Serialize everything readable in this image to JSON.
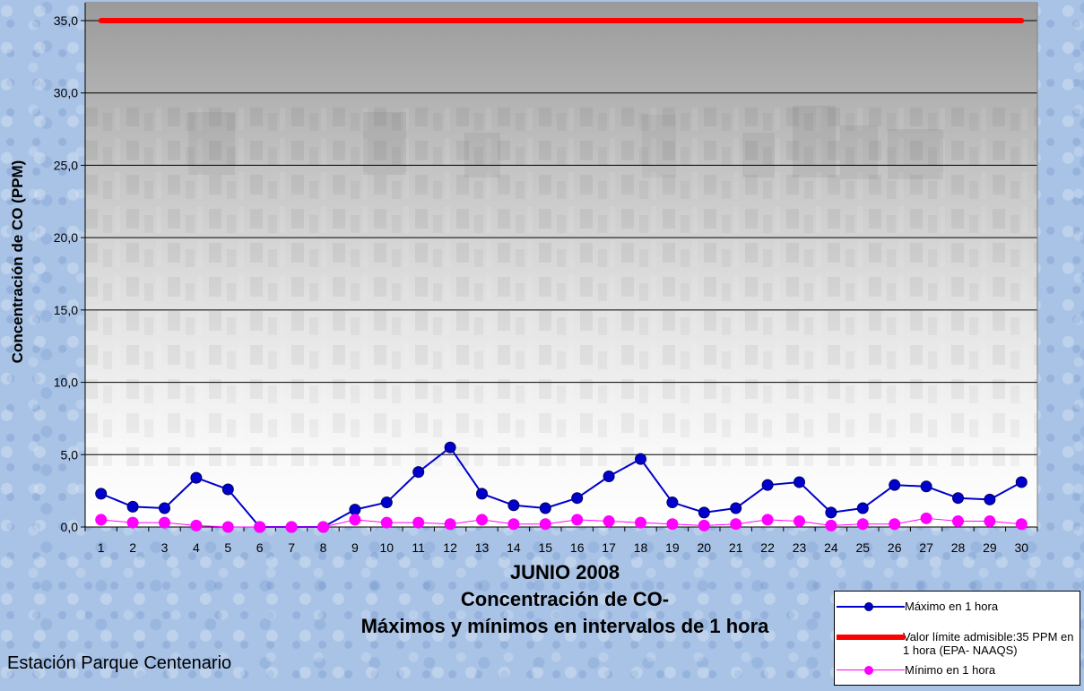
{
  "colors": {
    "max_series": "#0000cc",
    "limit_series": "#ff0000",
    "min_series": "#ff00ff"
  },
  "title": {
    "line1": "JUNIO 2008",
    "line2": "Concentración de CO-",
    "line3": "Máximos y mínimos en intervalos de 1 hora"
  },
  "station": "Estación Parque Centenario",
  "legend": {
    "max_label": "Máximo en 1 hora",
    "limit_label": "Valor límite admisible:35 PPM en 1 hora (EPA- NAAQS)",
    "min_label": "Mínimo en 1 hora"
  },
  "chart_data": {
    "type": "line",
    "ylabel": "Concentración de CO (PPM)",
    "ylim": [
      0,
      35
    ],
    "yticks": [
      "0,0",
      "5,0",
      "10,0",
      "15,0",
      "20,0",
      "25,0",
      "30,0",
      "35,0"
    ],
    "grid": true,
    "legend_position": "bottom-right",
    "categories": [
      "1",
      "2",
      "3",
      "4",
      "5",
      "6",
      "7",
      "8",
      "9",
      "10",
      "11",
      "12",
      "13",
      "14",
      "15",
      "16",
      "17",
      "18",
      "19",
      "20",
      "21",
      "22",
      "23",
      "24",
      "25",
      "26",
      "27",
      "28",
      "29",
      "30"
    ],
    "series": [
      {
        "name": "Máximo en 1 hora",
        "values": [
          2.3,
          1.4,
          1.3,
          3.4,
          2.6,
          0.0,
          0.0,
          0.0,
          1.2,
          1.7,
          3.8,
          5.5,
          2.3,
          1.5,
          1.3,
          2.0,
          3.5,
          4.7,
          1.7,
          1.0,
          1.3,
          2.9,
          3.1,
          1.0,
          1.3,
          2.9,
          2.8,
          2.0,
          1.9,
          3.1
        ]
      },
      {
        "name": "Valor límite admisible:35 PPM en 1 hora (EPA- NAAQS)",
        "values": [
          35,
          35,
          35,
          35,
          35,
          35,
          35,
          35,
          35,
          35,
          35,
          35,
          35,
          35,
          35,
          35,
          35,
          35,
          35,
          35,
          35,
          35,
          35,
          35,
          35,
          35,
          35,
          35,
          35,
          35
        ]
      },
      {
        "name": "Mínimo en 1 hora",
        "values": [
          0.5,
          0.3,
          0.3,
          0.1,
          0.0,
          0.0,
          0.0,
          0.0,
          0.5,
          0.3,
          0.3,
          0.2,
          0.5,
          0.2,
          0.2,
          0.5,
          0.4,
          0.3,
          0.2,
          0.1,
          0.2,
          0.5,
          0.4,
          0.1,
          0.2,
          0.2,
          0.6,
          0.4,
          0.4,
          0.2
        ]
      }
    ]
  }
}
